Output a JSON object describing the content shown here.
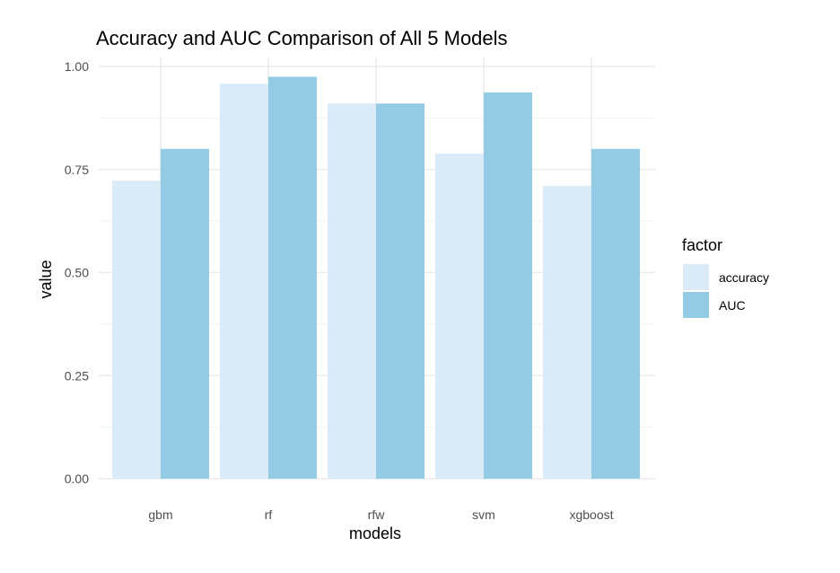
{
  "chart_data": {
    "type": "bar",
    "title": "Accuracy and AUC Comparison of All 5 Models",
    "xlabel": "models",
    "ylabel": "value",
    "categories": [
      "gbm",
      "rf",
      "rfw",
      "svm",
      "xgboost"
    ],
    "series": [
      {
        "name": "accuracy",
        "values": [
          0.723,
          0.958,
          0.91,
          0.789,
          0.71
        ],
        "color": "#dbeaf7"
      },
      {
        "name": "AUC",
        "values": [
          0.8,
          0.975,
          0.91,
          0.937,
          0.8
        ],
        "color": "#93cbe5"
      }
    ],
    "ylim": [
      0,
      1
    ],
    "yticks": [
      "0.00",
      "0.25",
      "0.50",
      "0.75",
      "1.00"
    ],
    "grid": true,
    "legend": {
      "title": "factor",
      "position": "right"
    }
  }
}
